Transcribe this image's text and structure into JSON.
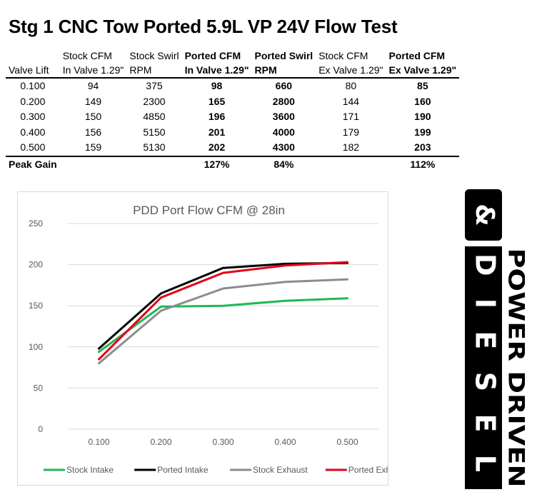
{
  "page": {
    "title": "Stg 1 CNC Tow Ported 5.9L VP 24V Flow Test"
  },
  "table": {
    "columns": [
      {
        "line1": "",
        "line2": "Valve Lift",
        "bold": false
      },
      {
        "line1": "Stock CFM",
        "line2": "In Valve 1.29\"",
        "bold": false
      },
      {
        "line1": "Stock Swirl",
        "line2": "RPM",
        "bold": false
      },
      {
        "line1": "Ported CFM",
        "line2": "In Valve 1.29\"",
        "bold": true
      },
      {
        "line1": "Ported Swirl",
        "line2": "RPM",
        "bold": true
      },
      {
        "line1": "Stock CFM",
        "line2": "Ex Valve 1.29\"",
        "bold": false
      },
      {
        "line1": "Ported CFM",
        "line2": "Ex Valve 1.29\"",
        "bold": true
      }
    ],
    "rows": [
      [
        "0.100",
        "94",
        "375",
        "98",
        "660",
        "80",
        "85"
      ],
      [
        "0.200",
        "149",
        "2300",
        "165",
        "2800",
        "144",
        "160"
      ],
      [
        "0.300",
        "150",
        "4850",
        "196",
        "3600",
        "171",
        "190"
      ],
      [
        "0.400",
        "156",
        "5150",
        "201",
        "4000",
        "179",
        "199"
      ],
      [
        "0.500",
        "159",
        "5130",
        "202",
        "4300",
        "182",
        "203"
      ]
    ],
    "peak_row": [
      "Peak Gain",
      "",
      "",
      "127%",
      "84%",
      "",
      "112%"
    ]
  },
  "chart_data": {
    "type": "line",
    "title": "PDD Port Flow CFM @ 28in",
    "xlabel": "",
    "ylabel": "",
    "categories": [
      "0.100",
      "0.200",
      "0.300",
      "0.400",
      "0.500"
    ],
    "ylim": [
      0,
      250
    ],
    "yticks": [
      0,
      50,
      100,
      150,
      200,
      250
    ],
    "grid": true,
    "legend_position": "bottom",
    "series": [
      {
        "name": "Stock Intake",
        "color": "#1db954",
        "values": [
          94,
          149,
          150,
          156,
          159
        ]
      },
      {
        "name": "Ported Intake",
        "color": "#000000",
        "values": [
          98,
          165,
          196,
          201,
          202
        ]
      },
      {
        "name": "Stock Exhaust",
        "color": "#8c8c8c",
        "values": [
          80,
          144,
          171,
          179,
          182
        ]
      },
      {
        "name": "Ported Exhaust",
        "color": "#e3001b",
        "values": [
          85,
          160,
          190,
          199,
          203
        ]
      }
    ]
  },
  "logo": {
    "line1": "POWER DRIVEN",
    "line2": "DIESEL",
    "mark": "&"
  }
}
